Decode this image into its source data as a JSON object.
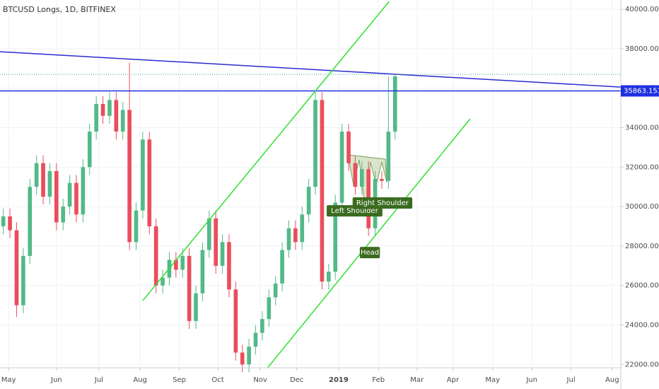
{
  "chart_data": {
    "type": "candlestick",
    "title": "BTCUSD Longs, 1D, BITFINEX",
    "categories": [
      null,
      null,
      null,
      null,
      null,
      null,
      null,
      null,
      null,
      null,
      null,
      null,
      null,
      null,
      null,
      null,
      null,
      null,
      null,
      null,
      null,
      null,
      null,
      null,
      null,
      null,
      null,
      null,
      null,
      null,
      null,
      null,
      null,
      null,
      null,
      null,
      null,
      null,
      null,
      null,
      null,
      null,
      null,
      null,
      null,
      null,
      null,
      null,
      null,
      null,
      null,
      null,
      null,
      null,
      null,
      null,
      null,
      null,
      null,
      null
    ],
    "open": [
      29000,
      29500,
      28800,
      25000,
      27500,
      31000,
      32200,
      30500,
      31800,
      29200,
      30000,
      31200,
      29600,
      32000,
      33800,
      35200,
      34600,
      35400,
      33800,
      34900,
      28200,
      29800,
      33400,
      29000,
      26000,
      26400,
      27300,
      26800,
      27500,
      24200,
      25600,
      27800,
      29400,
      27000,
      28200,
      25800,
      22600,
      22000,
      22900,
      23600,
      24300,
      25400,
      26100,
      27800,
      28900,
      28200,
      29600,
      31000,
      35400,
      26200,
      26700,
      30200,
      33800,
      32200,
      31000,
      31900,
      28900,
      31400,
      31300,
      33800
    ],
    "high": [
      29900,
      29900,
      29200,
      27900,
      31400,
      32600,
      32600,
      32200,
      32200,
      30400,
      31600,
      31600,
      32400,
      34200,
      35600,
      35600,
      35800,
      35800,
      35300,
      37300,
      30200,
      33800,
      33800,
      29400,
      26800,
      27700,
      27700,
      27900,
      27900,
      26000,
      28200,
      29800,
      29800,
      28600,
      28600,
      26200,
      23000,
      23300,
      24000,
      24700,
      25800,
      26500,
      28200,
      29300,
      29300,
      30000,
      31400,
      35800,
      35800,
      27100,
      30600,
      34200,
      34200,
      32600,
      32300,
      32300,
      31800,
      31800,
      36600,
      36700
    ],
    "low": [
      28600,
      28400,
      24400,
      24600,
      27100,
      30600,
      30100,
      30100,
      28800,
      28800,
      29600,
      29200,
      29200,
      31600,
      33400,
      34200,
      34200,
      33400,
      33400,
      27800,
      27800,
      29400,
      28600,
      25600,
      25600,
      26000,
      26400,
      26400,
      23800,
      23800,
      25200,
      27400,
      26600,
      26600,
      25400,
      22200,
      21600,
      21600,
      22500,
      23200,
      23900,
      25000,
      25700,
      27400,
      27800,
      27800,
      29200,
      30600,
      25800,
      25800,
      26300,
      29800,
      31800,
      30600,
      30600,
      28500,
      28500,
      30900,
      30900,
      33400
    ],
    "close": [
      29500,
      28800,
      25000,
      27500,
      31000,
      32200,
      30500,
      31800,
      29200,
      30000,
      31200,
      29600,
      32000,
      33800,
      35200,
      34600,
      35400,
      33800,
      34900,
      28200,
      29800,
      33400,
      29000,
      26000,
      26400,
      27300,
      26800,
      27500,
      24200,
      25600,
      27800,
      29400,
      27000,
      28200,
      25800,
      22600,
      22000,
      22900,
      23600,
      24300,
      25400,
      26100,
      27800,
      28900,
      28200,
      29600,
      31000,
      35400,
      26200,
      26700,
      30200,
      33800,
      32200,
      31000,
      31900,
      28900,
      31400,
      31300,
      33800,
      36600
    ],
    "up_color": "#53b987",
    "down_color": "#eb4d5c",
    "xlim": [
      -0.5,
      93
    ],
    "xticks": [
      {
        "value": 0.8,
        "label": "May"
      },
      {
        "value": 8.0,
        "label": "Jun"
      },
      {
        "value": 14.4,
        "label": "Jul"
      },
      {
        "value": 20.6,
        "label": "Aug"
      },
      {
        "value": 26.5,
        "label": "Sep"
      },
      {
        "value": 32.3,
        "label": "Oct"
      },
      {
        "value": 38.7,
        "label": "Nov"
      },
      {
        "value": 44.2,
        "label": "Dec"
      },
      {
        "value": 50.5,
        "label": "2019"
      },
      {
        "value": 56.5,
        "label": "Feb"
      },
      {
        "value": 62.3,
        "label": "Mar"
      },
      {
        "value": 67.7,
        "label": "Apr"
      },
      {
        "value": 73.7,
        "label": "May"
      },
      {
        "value": 79.6,
        "label": "Jun"
      },
      {
        "value": 85.5,
        "label": "Jul"
      },
      {
        "value": 91.7,
        "label": "Aug"
      }
    ],
    "ylim": [
      21830,
      40470
    ],
    "yticks": [
      {
        "value": 22000,
        "label": "22000.0000"
      },
      {
        "value": 24000,
        "label": "24000.0000"
      },
      {
        "value": 26000,
        "label": "26000.0000"
      },
      {
        "value": 28000,
        "label": "28000.0000"
      },
      {
        "value": 30000,
        "label": "30000.0000"
      },
      {
        "value": 32000,
        "label": "32000.0000"
      },
      {
        "value": 34000,
        "label": "34000.0000"
      },
      {
        "value": 36000,
        "label": "36000.0000"
      },
      {
        "value": 38000,
        "label": "38000.0000"
      },
      {
        "value": 40000,
        "label": "40000.0000"
      }
    ],
    "grid": true,
    "lines": [
      {
        "x": [
          -0.5,
          93
        ],
        "y": [
          37850,
          36057
        ],
        "color": "#2a2ad0"
      },
      {
        "x": [
          -0.5,
          93
        ],
        "y": [
          35863.1531,
          35863.1531
        ],
        "color": "#1f2fe0",
        "label": "35863.1531"
      },
      {
        "x": [
          -0.5,
          93
        ],
        "y": [
          36700,
          36700
        ],
        "color": "#3aa38a",
        "dashed": true
      },
      {
        "x": [
          21.0,
          58.1
        ],
        "y": [
          25233,
          40394
        ],
        "color": "#2ee02e"
      },
      {
        "x": [
          39.8,
          70.3
        ],
        "y": [
          21828,
          34444
        ],
        "color": "#2ee02e"
      }
    ],
    "annotations": [
      {
        "text": "Left Shoulder",
        "x": 52.9,
        "y": 29785
      },
      {
        "text": "Head",
        "x": 55.2,
        "y": 27670
      },
      {
        "text": "Right Shoulder",
        "x": 57.1,
        "y": 30180
      }
    ],
    "annotation_color": "#3a6b1f"
  }
}
